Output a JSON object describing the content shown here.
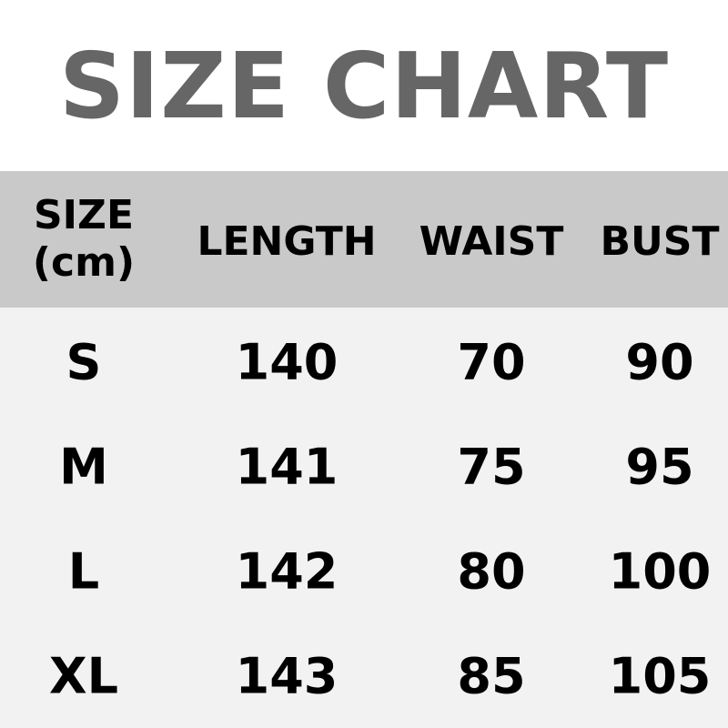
{
  "title": "SIZE CHART",
  "headers": [
    "SIZE",
    "(cm)",
    "LENGTH",
    "WAIST",
    "BUST"
  ],
  "rows": [
    [
      "S",
      "140",
      "70",
      "90"
    ],
    [
      "M",
      "141",
      "75",
      "95"
    ],
    [
      "L",
      "142",
      "80",
      "100"
    ],
    [
      "XL",
      "143",
      "85",
      "105"
    ]
  ],
  "colors": {
    "title": "#666666",
    "header_bg": "#c9c9c9",
    "body_bg": "#f2f2f2"
  }
}
